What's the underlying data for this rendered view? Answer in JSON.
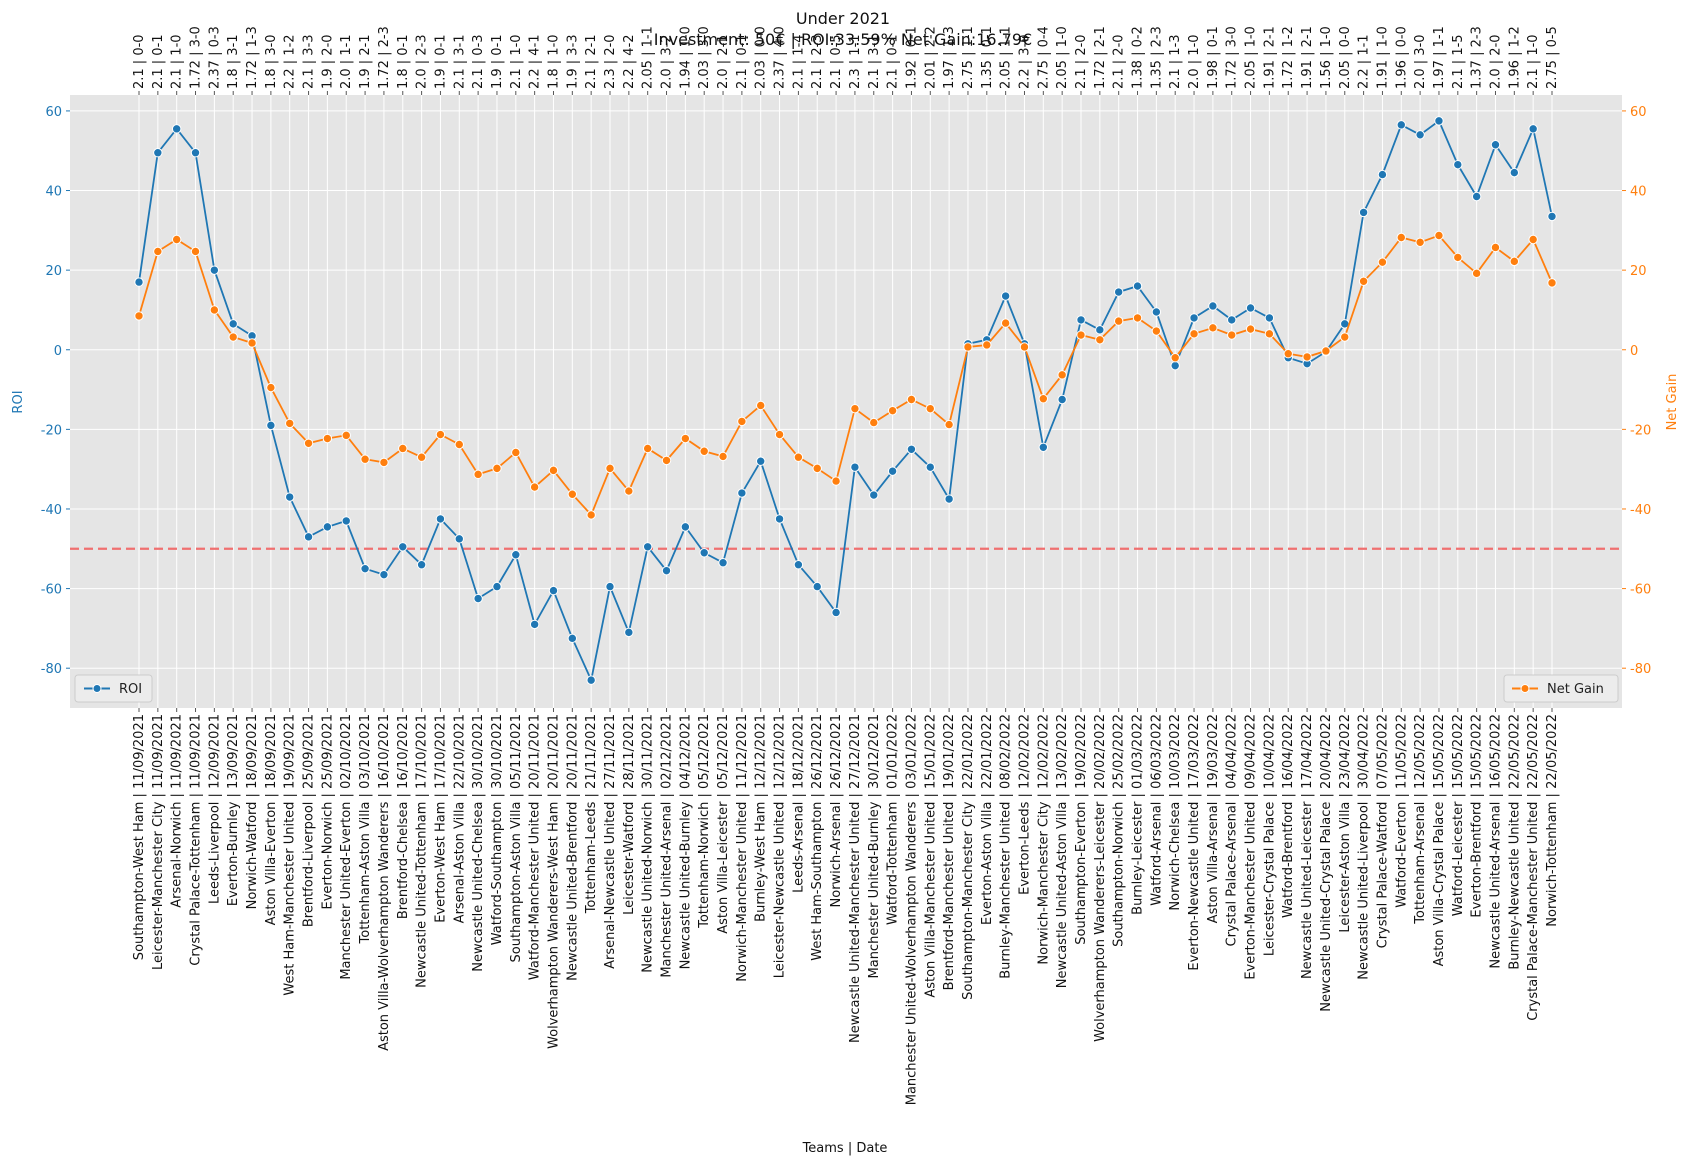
{
  "chart_data": {
    "type": "line",
    "title": "Under 2021",
    "subtitle": "Investment: 50€ | ROI:33.59% Net Gain:16.79€",
    "xlabel": "Teams | Date",
    "ylabel_left": "ROI",
    "ylabel_right": "Net Gain",
    "ylim_left": [
      -90,
      64
    ],
    "ylim_right": [
      -90,
      64
    ],
    "yticks": [
      60,
      40,
      20,
      0,
      -20,
      -40,
      -60,
      -80
    ],
    "reference_line": -50,
    "grid": true,
    "colors": {
      "roi": "#1f77b4",
      "net_gain": "#ff7f0e",
      "reference": "#f07070",
      "plot_bg": "#e5e5e5"
    },
    "legend_left": {
      "label": "ROI",
      "position": "lower-left"
    },
    "legend_right": {
      "label": "Net Gain",
      "position": "lower-right"
    },
    "categories": [
      "Southampton-West Ham | 11/09/2021",
      "Leicester-Manchester City | 11/09/2021",
      "Arsenal-Norwich | 11/09/2021",
      "Crystal Palace-Tottenham | 11/09/2021",
      "Leeds-Liverpool | 12/09/2021",
      "Everton-Burnley | 13/09/2021",
      "Norwich-Watford | 18/09/2021",
      "Aston Villa-Everton | 18/09/2021",
      "West Ham-Manchester United | 19/09/2021",
      "Brentford-Liverpool | 25/09/2021",
      "Everton-Norwich | 25/09/2021",
      "Manchester United-Everton | 02/10/2021",
      "Tottenham-Aston Villa | 03/10/2021",
      "Aston Villa-Wolverhampton Wanderers | 16/10/2021",
      "Brentford-Chelsea | 16/10/2021",
      "Newcastle United-Tottenham | 17/10/2021",
      "Everton-West Ham | 17/10/2021",
      "Arsenal-Aston Villa | 22/10/2021",
      "Newcastle United-Chelsea | 30/10/2021",
      "Watford-Southampton | 30/10/2021",
      "Southampton-Aston Villa | 05/11/2021",
      "Watford-Manchester United | 20/11/2021",
      "Wolverhampton Wanderers-West Ham | 20/11/2021",
      "Newcastle United-Brentford | 20/11/2021",
      "Tottenham-Leeds | 21/11/2021",
      "Arsenal-Newcastle United | 27/11/2021",
      "Leicester-Watford | 28/11/2021",
      "Newcastle United-Norwich | 30/11/2021",
      "Manchester United-Arsenal | 02/12/2021",
      "Newcastle United-Burnley | 04/12/2021",
      "Tottenham-Norwich | 05/12/2021",
      "Aston Villa-Leicester | 05/12/2021",
      "Norwich-Manchester United | 11/12/2021",
      "Burnley-West Ham | 12/12/2021",
      "Leicester-Newcastle United | 12/12/2021",
      "Leeds-Arsenal | 18/12/2021",
      "West Ham-Southampton | 26/12/2021",
      "Norwich-Arsenal | 26/12/2021",
      "Newcastle United-Manchester United | 27/12/2021",
      "Manchester United-Burnley | 30/12/2021",
      "Watford-Tottenham | 01/01/2022",
      "Manchester United-Wolverhampton Wanderers | 03/01/2022",
      "Aston Villa-Manchester United | 15/01/2022",
      "Brentford-Manchester United | 19/01/2022",
      "Southampton-Manchester City | 22/01/2022",
      "Everton-Aston Villa | 22/01/2022",
      "Burnley-Manchester United | 08/02/2022",
      "Everton-Leeds | 12/02/2022",
      "Norwich-Manchester City | 12/02/2022",
      "Newcastle United-Aston Villa | 13/02/2022",
      "Southampton-Everton | 19/02/2022",
      "Wolverhampton Wanderers-Leicester | 20/02/2022",
      "Southampton-Norwich | 25/02/2022",
      "Burnley-Leicester | 01/03/2022",
      "Watford-Arsenal | 06/03/2022",
      "Norwich-Chelsea | 10/03/2022",
      "Everton-Newcastle United | 17/03/2022",
      "Aston Villa-Arsenal | 19/03/2022",
      "Crystal Palace-Arsenal | 04/04/2022",
      "Everton-Manchester United | 09/04/2022",
      "Leicester-Crystal Palace | 10/04/2022",
      "Watford-Brentford | 16/04/2022",
      "Newcastle United-Leicester | 17/04/2022",
      "Newcastle United-Crystal Palace | 20/04/2022",
      "Leicester-Aston Villa | 23/04/2022",
      "Newcastle United-Liverpool | 30/04/2022",
      "Crystal Palace-Watford | 07/05/2022",
      "Watford-Everton | 11/05/2022",
      "Tottenham-Arsenal | 12/05/2022",
      "Aston Villa-Crystal Palace | 15/05/2022",
      "Watford-Leicester | 15/05/2022",
      "Everton-Brentford | 15/05/2022",
      "Newcastle United-Arsenal | 16/05/2022",
      "Burnley-Newcastle United | 22/05/2022",
      "Crystal Palace-Manchester United | 22/05/2022",
      "Norwich-Tottenham | 22/05/2022"
    ],
    "top_labels": [
      "2.1 | 0-0",
      "2.1 | 0-1",
      "2.1 | 1-0",
      "1.72 | 3-0",
      "2.37 | 0-3",
      "1.8 | 3-1",
      "1.72 | 1-3",
      "1.8 | 3-0",
      "2.2 | 1-2",
      "2.1 | 3-3",
      "1.9 | 2-0",
      "2.0 | 1-1",
      "1.9 | 2-1",
      "1.72 | 2-3",
      "1.8 | 0-1",
      "2.0 | 2-3",
      "1.9 | 0-1",
      "2.1 | 3-1",
      "2.1 | 0-3",
      "1.9 | 0-1",
      "2.1 | 1-0",
      "2.2 | 4-1",
      "1.8 | 1-0",
      "1.9 | 3-3",
      "2.1 | 2-1",
      "2.3 | 2-0",
      "2.2 | 4-2",
      "2.05 | 1-1",
      "2.0 | 3-2",
      "1.94 | 1-0",
      "2.03 | 3-0",
      "2.0 | 2-1",
      "2.1 | 0-1",
      "2.03 | 0-0",
      "2.37 | 4-0",
      "2.1 | 1-4",
      "2.1 | 2-3",
      "2.1 | 0-5",
      "2.3 | 1-1",
      "2.1 | 3-1",
      "2.1 | 0-1",
      "1.92 | 0-1",
      "2.01 | 2-2",
      "1.97 | 1-3",
      "2.75 | 1-1",
      "1.35 | 0-1",
      "2.05 | 1-1",
      "2.2 | 3-0",
      "2.75 | 0-4",
      "2.05 | 1-0",
      "2.1 | 2-0",
      "1.72 | 2-1",
      "2.1 | 2-0",
      "1.38 | 0-2",
      "1.35 | 2-3",
      "2.1 | 1-3",
      "2.0 | 1-0",
      "1.98 | 0-1",
      "1.72 | 3-0",
      "2.05 | 1-0",
      "1.91 | 2-1",
      "1.72 | 1-2",
      "1.91 | 2-1",
      "1.56 | 1-0",
      "2.05 | 0-0",
      "2.2 | 1-1",
      "1.91 | 1-0",
      "1.96 | 0-0",
      "2.0 | 3-0",
      "1.97 | 1-1",
      "2.1 | 1-5",
      "1.37 | 2-3",
      "2.0 | 2-0",
      "1.96 | 1-2",
      "2.1 | 1-0",
      "2.75 | 0-5"
    ],
    "series": [
      {
        "name": "ROI",
        "axis": "left",
        "values": [
          17,
          49.5,
          55.5,
          49.5,
          20,
          6.5,
          3.5,
          -19,
          -37,
          -47,
          -44.5,
          -43,
          -55,
          -56.5,
          -49.5,
          -54,
          -42.5,
          -47.5,
          -62.5,
          -59.5,
          -51.5,
          -69,
          -60.5,
          -72.5,
          -83,
          -59.5,
          -71,
          -49.5,
          -55.5,
          -44.5,
          -51,
          -53.5,
          -36,
          -28,
          -42.5,
          -54,
          -59.5,
          -66,
          -29.5,
          -36.5,
          -30.5,
          -25,
          -29.5,
          -37.5,
          1.5,
          2.5,
          13.5,
          1.5,
          -24.5,
          -12.5,
          7.5,
          5,
          14.5,
          16,
          9.5,
          -4,
          8,
          11,
          7.5,
          10.5,
          8,
          -2,
          -3.5,
          -0.5,
          6.5,
          34.5,
          44,
          56.5,
          54,
          57.5,
          46.5,
          38.5,
          51.5,
          44.5,
          55.5,
          33.5
        ]
      },
      {
        "name": "Net Gain",
        "axis": "right",
        "values": [
          8.5,
          24.7,
          27.7,
          24.7,
          10,
          3.2,
          1.7,
          -9.5,
          -18.5,
          -23.5,
          -22.3,
          -21.5,
          -27.5,
          -28.3,
          -24.8,
          -27,
          -21.3,
          -23.8,
          -31.3,
          -29.8,
          -25.8,
          -34.5,
          -30.3,
          -36.3,
          -41.5,
          -29.8,
          -35.5,
          -24.8,
          -27.8,
          -22.3,
          -25.5,
          -26.8,
          -18,
          -14,
          -21.3,
          -27,
          -29.8,
          -33,
          -14.8,
          -18.3,
          -15.3,
          -12.5,
          -14.8,
          -18.8,
          0.7,
          1.2,
          6.7,
          0.7,
          -12.3,
          -6.3,
          3.7,
          2.5,
          7.2,
          8,
          4.7,
          -2,
          4,
          5.5,
          3.7,
          5.2,
          4,
          -1,
          -1.8,
          -0.3,
          3.2,
          17.2,
          22,
          28.2,
          27,
          28.7,
          23.2,
          19.2,
          25.7,
          22.2,
          27.7,
          16.8
        ]
      }
    ]
  }
}
